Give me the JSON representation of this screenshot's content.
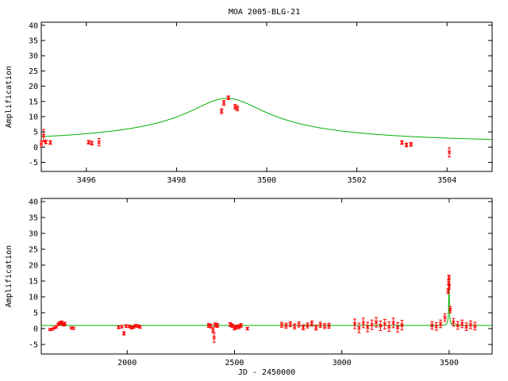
{
  "chart_data": [
    {
      "type": "scatter",
      "title": "MOA 2005-BLG-21",
      "xlabel": "",
      "ylabel": "Amplification",
      "xlim": [
        3495,
        3505
      ],
      "ylim": [
        -8,
        41
      ],
      "x_ticks": [
        3496,
        3498,
        3500,
        3502,
        3504
      ],
      "y_ticks": [
        -5,
        0,
        5,
        10,
        15,
        20,
        25,
        30,
        35,
        40
      ],
      "grid": false,
      "colors": {
        "points": "#ff0000",
        "model": "#00b000"
      },
      "model": {
        "t0": 3499.12,
        "u0": 0.0625,
        "tE": 14.0
      },
      "series": [
        {
          "x": [
            3495.0,
            3495.05,
            3495.1,
            3495.2,
            3496.05,
            3496.12,
            3496.28,
            3499.0,
            3499.05,
            3499.15,
            3499.3,
            3499.35,
            3503.0,
            3503.1,
            3503.2,
            3504.05
          ],
          "y": [
            1.0,
            3.8,
            1.7,
            1.5,
            1.6,
            1.3,
            1.6,
            11.8,
            14.5,
            16.2,
            13.2,
            12.7,
            1.5,
            0.7,
            0.9,
            -1.7
          ],
          "err": [
            1.0,
            2.0,
            0.6,
            0.6,
            0.6,
            0.6,
            1.2,
            0.8,
            0.8,
            0.6,
            0.8,
            0.8,
            0.6,
            0.6,
            0.6,
            1.5
          ]
        }
      ]
    },
    {
      "type": "scatter",
      "title": "",
      "xlabel": "JD - 2450000",
      "ylabel": "Amplification",
      "xlim": [
        1600,
        3700
      ],
      "ylim": [
        -8,
        41
      ],
      "x_ticks": [
        2000,
        2500,
        3000,
        3500
      ],
      "y_ticks": [
        -5,
        0,
        5,
        10,
        15,
        20,
        25,
        30,
        35,
        40
      ],
      "grid": false,
      "colors": {
        "points": "#ff0000",
        "model": "#00b000"
      },
      "model": {
        "t0": 3499.12,
        "u0": 0.0625,
        "tE": 14.0
      },
      "series": [
        {
          "x": [
            1640,
            1650,
            1660,
            1670,
            1678,
            1685,
            1690,
            1695,
            1700,
            1705,
            1710,
            1740,
            1750,
            1960,
            1975,
            1985,
            1995,
            2010,
            2020,
            2030,
            2040,
            2050,
            2060,
            2380,
            2390,
            2400,
            2405,
            2410,
            2420,
            2480,
            2490,
            2500,
            2510,
            2520,
            2530,
            2560,
            2720,
            2740,
            2760,
            2780,
            2800,
            2820,
            2840,
            2860,
            2880,
            2900,
            2920,
            2940,
            3060,
            3080,
            3100,
            3120,
            3140,
            3160,
            3180,
            3200,
            3220,
            3240,
            3260,
            3280,
            3420,
            3440,
            3460,
            3480,
            3495,
            3498,
            3499,
            3500,
            3505,
            3520,
            3540,
            3560,
            3580,
            3600,
            3620
          ],
          "y": [
            -0.3,
            -0.2,
            0.2,
            0.6,
            1.3,
            1.7,
            1.8,
            2.0,
            1.5,
            1.2,
            1.6,
            0.2,
            0.1,
            0.4,
            0.6,
            -1.5,
            0.8,
            0.7,
            0.3,
            0.5,
            0.9,
            0.8,
            0.5,
            1.0,
            0.8,
            -0.5,
            -2.8,
            1.2,
            1.0,
            1.3,
            0.9,
            0.2,
            0.5,
            0.6,
            1.0,
            0.0,
            1.2,
            0.9,
            1.4,
            0.7,
            1.3,
            0.4,
            1.0,
            1.6,
            0.3,
            1.2,
            0.8,
            0.9,
            1.5,
            0.2,
            1.8,
            0.5,
            1.2,
            2.0,
            0.9,
            1.4,
            0.6,
            1.8,
            0.4,
            1.1,
            1.0,
            0.7,
            1.5,
            3.5,
            11.8,
            14.5,
            16.2,
            13.2,
            6.0,
            2.0,
            1.0,
            1.5,
            0.6,
            1.2,
            0.8
          ],
          "err": [
            0.3,
            0.3,
            0.3,
            0.4,
            0.4,
            0.4,
            0.4,
            0.4,
            0.4,
            0.4,
            0.4,
            0.3,
            0.3,
            0.4,
            0.4,
            0.5,
            0.4,
            0.4,
            0.4,
            0.4,
            0.4,
            0.4,
            0.4,
            0.6,
            0.6,
            0.8,
            1.5,
            0.6,
            0.6,
            0.6,
            0.6,
            0.6,
            0.6,
            0.6,
            0.6,
            0.4,
            0.8,
            0.8,
            0.8,
            0.8,
            0.8,
            0.8,
            0.8,
            0.8,
            0.8,
            0.8,
            0.8,
            0.8,
            1.5,
            1.5,
            1.5,
            1.5,
            1.5,
            1.5,
            1.5,
            1.5,
            1.5,
            1.5,
            1.5,
            1.5,
            1.2,
            1.2,
            1.2,
            1.2,
            0.8,
            0.8,
            0.6,
            0.8,
            1.0,
            1.2,
            1.2,
            1.2,
            1.2,
            1.2,
            1.2
          ]
        }
      ]
    }
  ]
}
